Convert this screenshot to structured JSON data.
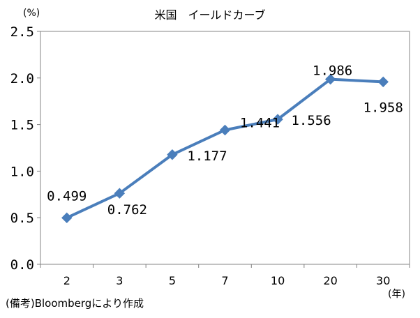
{
  "title": "米国　イールドカーブ",
  "y_unit_label": "(%)",
  "x_unit_label": "(年)",
  "note": "(備考)Bloombergにより作成",
  "colors": {
    "series": "#4a7ebb",
    "axis": "#808080",
    "grid": "#868686",
    "text": "#000000"
  },
  "chart_data": {
    "type": "line",
    "x": [
      "2",
      "3",
      "5",
      "7",
      "10",
      "20",
      "30"
    ],
    "series": [
      {
        "values": [
          0.499,
          0.762,
          1.177,
          1.441,
          1.556,
          1.986,
          1.958
        ]
      }
    ],
    "data_labels": [
      "0.499",
      "0.762",
      "1.177",
      "1.441",
      "1.556",
      "1.986",
      "1.958"
    ],
    "yticks": [
      "0.0",
      "0.5",
      "1.0",
      "1.5",
      "2.0",
      "2.5"
    ],
    "ylim": [
      0,
      2.5
    ],
    "xlabel": "(年)",
    "ylabel": "(%)",
    "grid": false,
    "marker": "diamond"
  }
}
